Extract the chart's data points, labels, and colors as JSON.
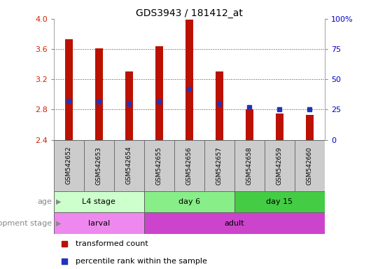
{
  "title": "GDS3943 / 181412_at",
  "samples": [
    "GSM542652",
    "GSM542653",
    "GSM542654",
    "GSM542655",
    "GSM542656",
    "GSM542657",
    "GSM542658",
    "GSM542659",
    "GSM542660"
  ],
  "bar_tops": [
    3.73,
    3.61,
    3.3,
    3.64,
    3.99,
    3.3,
    2.8,
    2.75,
    2.73
  ],
  "bar_base": 2.4,
  "blue_markers": [
    2.92,
    2.91,
    2.88,
    2.91,
    3.07,
    2.88,
    2.83,
    2.8,
    2.8
  ],
  "ylim": [
    2.4,
    4.0
  ],
  "yticks_left": [
    2.4,
    2.8,
    3.2,
    3.6,
    4.0
  ],
  "yticks_right": [
    0,
    25,
    50,
    75,
    100
  ],
  "bar_color": "#bb1100",
  "blue_color": "#2233bb",
  "grid_color": "#444444",
  "age_groups": [
    {
      "label": "L4 stage",
      "start": 0,
      "end": 3,
      "color": "#ccffcc"
    },
    {
      "label": "day 6",
      "start": 3,
      "end": 6,
      "color": "#88ee88"
    },
    {
      "label": "day 15",
      "start": 6,
      "end": 9,
      "color": "#44cc44"
    }
  ],
  "dev_groups": [
    {
      "label": "larval",
      "start": 0,
      "end": 3,
      "color": "#ee88ee"
    },
    {
      "label": "adult",
      "start": 3,
      "end": 9,
      "color": "#cc44cc"
    }
  ],
  "legend_bar": "transformed count",
  "legend_blue": "percentile rank within the sample",
  "bg_color": "#ffffff",
  "tick_color_left": "#cc2200",
  "tick_color_right": "#0000cc",
  "sample_bg_color": "#cccccc",
  "label_color": "#888888",
  "bar_width": 0.25
}
